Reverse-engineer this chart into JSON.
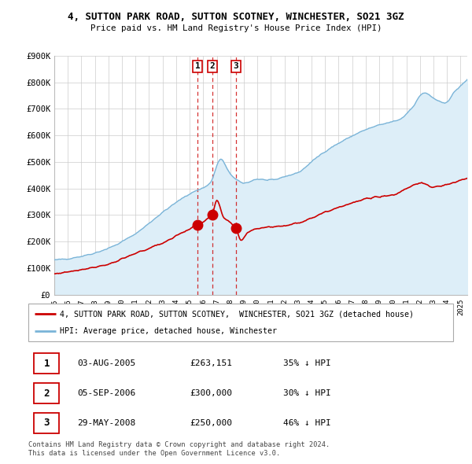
{
  "title": "4, SUTTON PARK ROAD, SUTTON SCOTNEY, WINCHESTER, SO21 3GZ",
  "subtitle": "Price paid vs. HM Land Registry's House Price Index (HPI)",
  "ylim": [
    0,
    900000
  ],
  "yticks": [
    0,
    100000,
    200000,
    300000,
    400000,
    500000,
    600000,
    700000,
    800000,
    900000
  ],
  "ytick_labels": [
    "£0",
    "£100K",
    "£200K",
    "£300K",
    "£400K",
    "£500K",
    "£600K",
    "£700K",
    "£800K",
    "£900K"
  ],
  "hpi_color": "#7ab4d8",
  "hpi_fill_color": "#ddeef8",
  "price_color": "#cc0000",
  "background_color": "#ffffff",
  "grid_color": "#cccccc",
  "transactions": [
    {
      "label": "1",
      "date": "03-AUG-2005",
      "price": 263151,
      "pct": "35%",
      "x_year": 2005.58
    },
    {
      "label": "2",
      "date": "05-SEP-2006",
      "price": 300000,
      "pct": "30%",
      "x_year": 2006.67
    },
    {
      "label": "3",
      "date": "29-MAY-2008",
      "price": 250000,
      "pct": "46%",
      "x_year": 2008.41
    }
  ],
  "legend_line1": "4, SUTTON PARK ROAD, SUTTON SCOTNEY,  WINCHESTER, SO21 3GZ (detached house)",
  "legend_line2": "HPI: Average price, detached house, Winchester",
  "footnote1": "Contains HM Land Registry data © Crown copyright and database right 2024.",
  "footnote2": "This data is licensed under the Open Government Licence v3.0.",
  "xmin": 1995,
  "xmax": 2025.5
}
